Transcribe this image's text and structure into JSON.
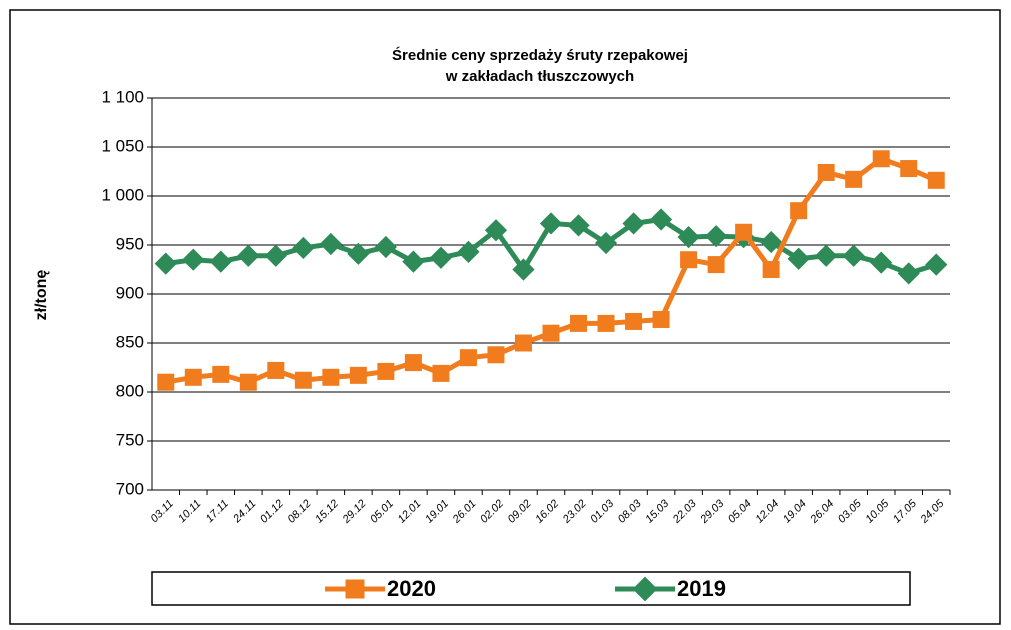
{
  "chart_data": {
    "type": "line",
    "title": [
      "Średnie ceny sprzedaży śruty rzepakowej",
      "w zakładach tłuszczowych"
    ],
    "y_label": "zł/tonę",
    "categories": [
      "03.11",
      "10.11",
      "17.11",
      "24.11",
      "01.12",
      "08.12",
      "15.12",
      "29.12",
      "05.01",
      "12.01",
      "19.01",
      "26.01",
      "02.02",
      "09.02",
      "16.02",
      "23.02",
      "01.03",
      "08.03",
      "15.03",
      "22.03",
      "29.03",
      "05.04",
      "12.04",
      "19.04",
      "26.04",
      "03.05",
      "10.05",
      "17.05",
      "24.05"
    ],
    "series": [
      {
        "name": "2020",
        "color": "#f07c1e",
        "marker": "square",
        "values": [
          810,
          815,
          818,
          810,
          822,
          812,
          815,
          817,
          821,
          830,
          819,
          835,
          838,
          850,
          860,
          870,
          870,
          872,
          874,
          935,
          930,
          963,
          925,
          985,
          1024,
          1017,
          1038,
          1028,
          1016
        ]
      },
      {
        "name": "2019",
        "color": "#2e8b57",
        "marker": "diamond",
        "values": [
          931,
          935,
          933,
          939,
          939,
          947,
          951,
          941,
          948,
          933,
          937,
          943,
          965,
          925,
          972,
          970,
          952,
          972,
          976,
          958,
          959,
          958,
          953,
          936,
          939,
          939,
          932,
          921,
          930
        ]
      }
    ],
    "ylim": [
      700,
      1100
    ],
    "yticks": [
      700,
      750,
      800,
      850,
      900,
      950,
      {
        "value": 1000,
        "label": "1 000"
      },
      {
        "value": 1050,
        "label": "1 050"
      },
      {
        "value": 1100,
        "label": "1 100"
      }
    ],
    "grid": true,
    "legend": "bottom"
  }
}
